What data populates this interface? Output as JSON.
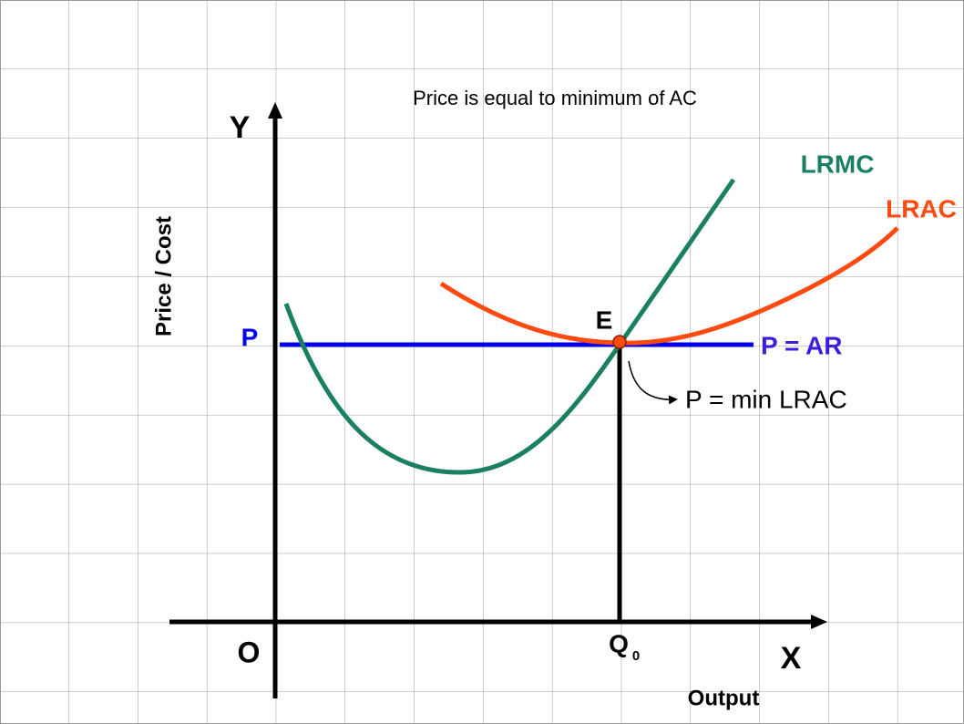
{
  "title": "Price is equal to minimum of AC",
  "axes": {
    "y_letter": "Y",
    "y_label": "Price / Cost",
    "origin": "O",
    "x_letter": "X",
    "x_label": "Output"
  },
  "labels": {
    "price": "P",
    "lrmc": "LRMC",
    "lrac": "LRAC",
    "equilibrium": "E",
    "demand": "P = AR",
    "note": "P = min LRAC",
    "quantity": "Q",
    "quantity_sub": "0"
  }
}
